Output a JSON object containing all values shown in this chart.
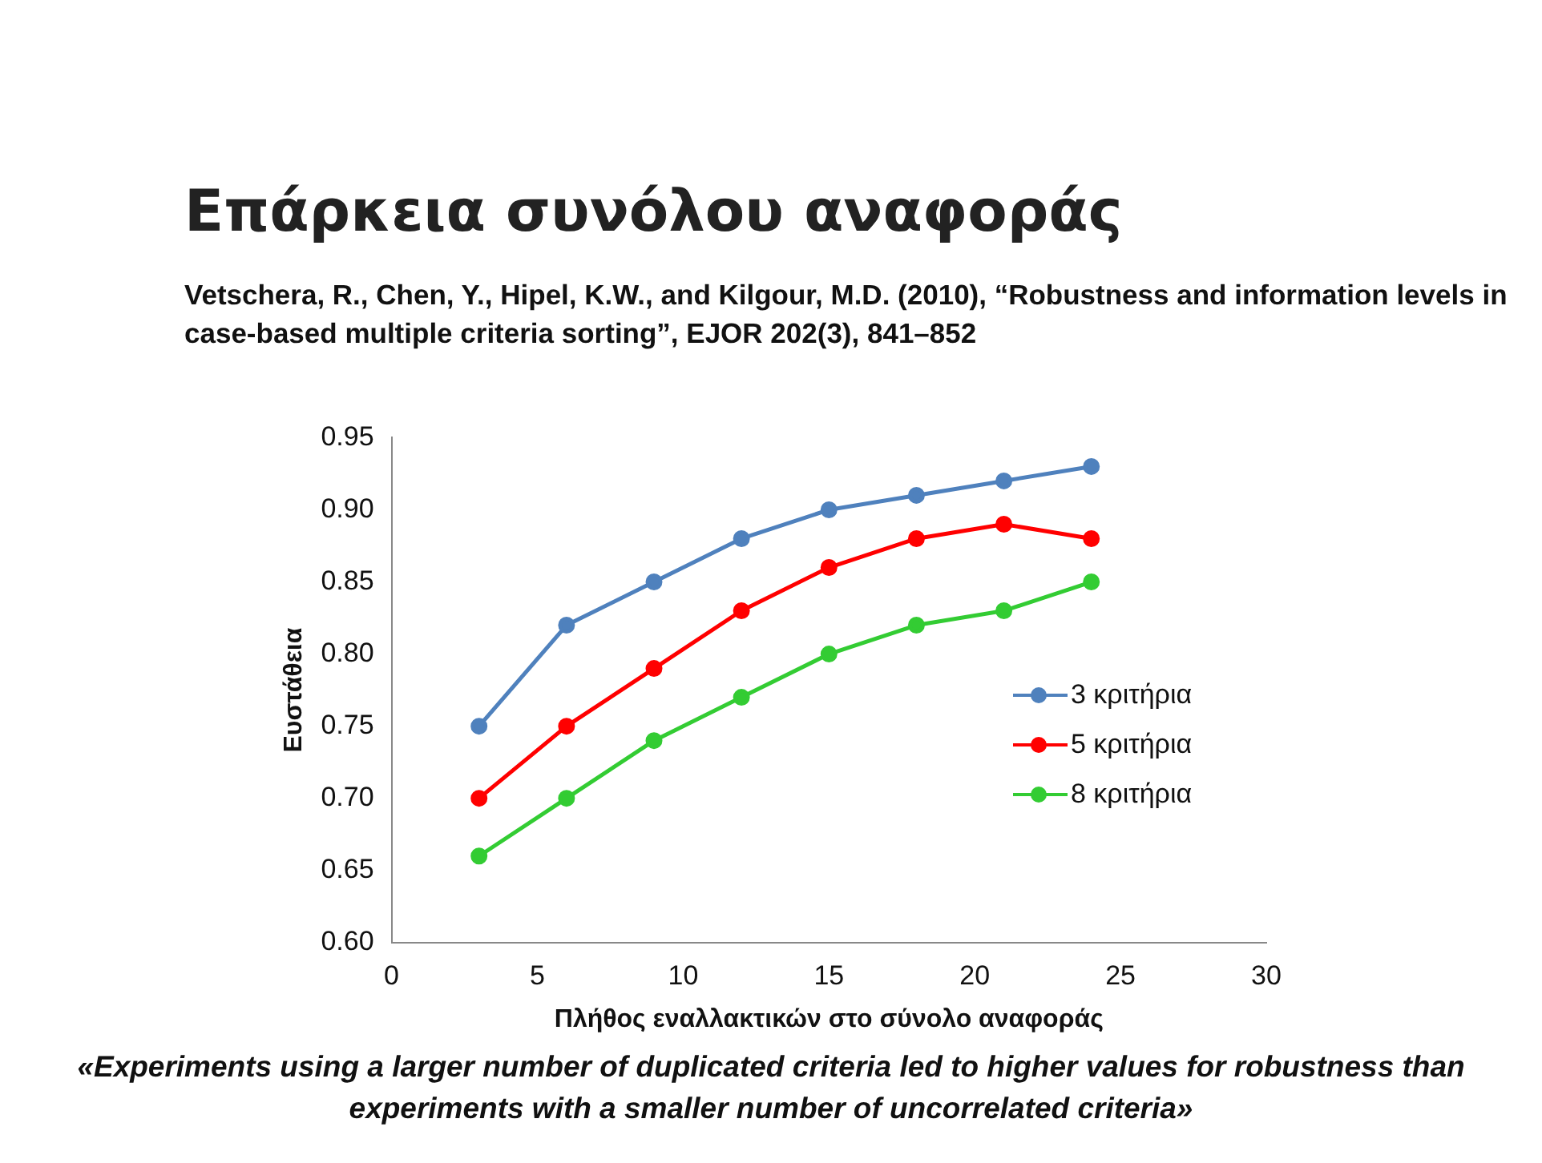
{
  "chart_data": {
    "type": "line",
    "title": "Επάρκεια συνόλου αναφοράς",
    "subtitle": "Vetschera, R., Chen, Y., Hipel, K.W., and Kilgour, M.D. (2010), “Robustness and information levels in case-based multiple criteria sorting”, EJOR 202(3), 841–852",
    "xlabel": "Πλήθος εναλλακτικών στο σύνολο αναφοράς",
    "ylabel": "Ευστάθεια",
    "annotations": [
      "«Experiments using a larger number of duplicated criteria led to higher values for robustness than experiments with a smaller number of uncorrelated criteria»"
    ],
    "x": [
      3,
      6,
      9,
      12,
      15,
      18,
      21,
      24
    ],
    "series": [
      {
        "name": "3 κριτήρια",
        "color": "#4f81bd",
        "values": [
          0.75,
          0.82,
          0.85,
          0.88,
          0.9,
          0.91,
          0.92,
          0.93
        ]
      },
      {
        "name": "5 κριτήρια",
        "color": "#ff0000",
        "values": [
          0.7,
          0.75,
          0.79,
          0.83,
          0.86,
          0.88,
          0.89,
          0.88
        ]
      },
      {
        "name": "8 κριτήρια",
        "color": "#33cc33",
        "values": [
          0.66,
          0.7,
          0.74,
          0.77,
          0.8,
          0.82,
          0.83,
          0.85
        ]
      }
    ],
    "xlim": [
      0,
      30
    ],
    "xticks": [
      0,
      5,
      10,
      15,
      20,
      25,
      30
    ],
    "ylim": [
      0.6,
      0.95
    ],
    "yticks": [
      {
        "value": 0.6,
        "label": "0.60"
      },
      {
        "value": 0.65,
        "label": "0.65"
      },
      {
        "value": 0.7,
        "label": "0.70"
      },
      {
        "value": 0.75,
        "label": "0.75"
      },
      {
        "value": 0.8,
        "label": "0.80"
      },
      {
        "value": 0.85,
        "label": "0.85"
      },
      {
        "value": 0.9,
        "label": "0.90"
      },
      {
        "value": 0.95,
        "label": "0.95"
      }
    ],
    "grid": false,
    "legend": "right",
    "marker": "circle",
    "line_style": "solid"
  }
}
